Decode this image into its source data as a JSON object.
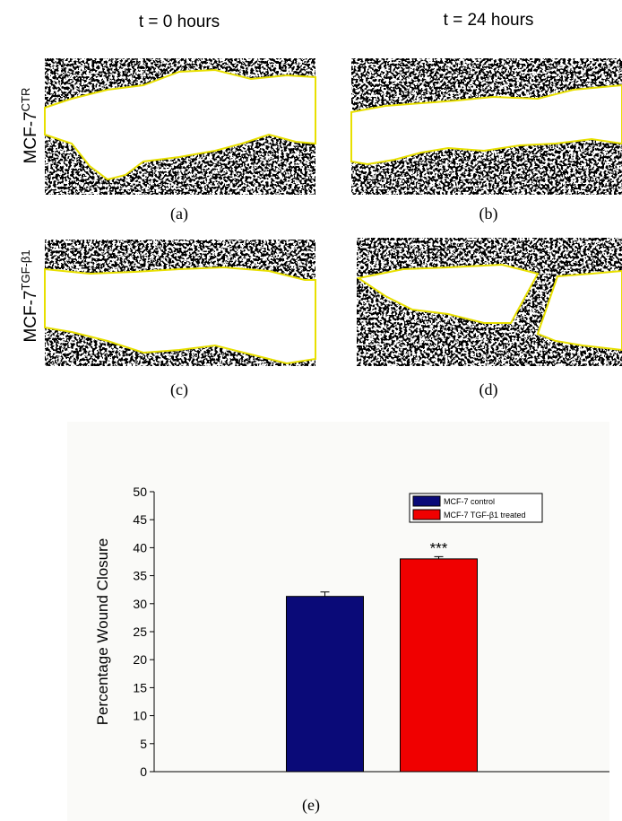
{
  "panels": {
    "column_titles": [
      "t = 0 hours",
      "t = 24 hours"
    ],
    "row_labels": [
      {
        "base": "MCF-7",
        "sup": "CTR"
      },
      {
        "base": "MCF-7",
        "sup": "TGF-β1"
      }
    ],
    "image_labels": [
      "(a)",
      "(b)",
      "(c)",
      "(d)"
    ]
  },
  "chart_data": {
    "type": "bar",
    "label": "(e)",
    "ylabel": "Percentage Wound Closure",
    "categories": [
      null
    ],
    "series": [
      {
        "name": "MCF-7 control",
        "color": "#0a0a78",
        "values": [
          31.3
        ],
        "errors": [
          0.8
        ]
      },
      {
        "name": "MCF-7 TGF-β1 treated",
        "color": "#f00000",
        "values": [
          38.0
        ],
        "errors": [
          0.4
        ],
        "annotation": "***"
      }
    ],
    "ylim": [
      0,
      50
    ],
    "yticks": [
      0,
      5,
      10,
      15,
      20,
      25,
      30,
      35,
      40,
      45,
      50
    ],
    "legend": "top-right"
  }
}
